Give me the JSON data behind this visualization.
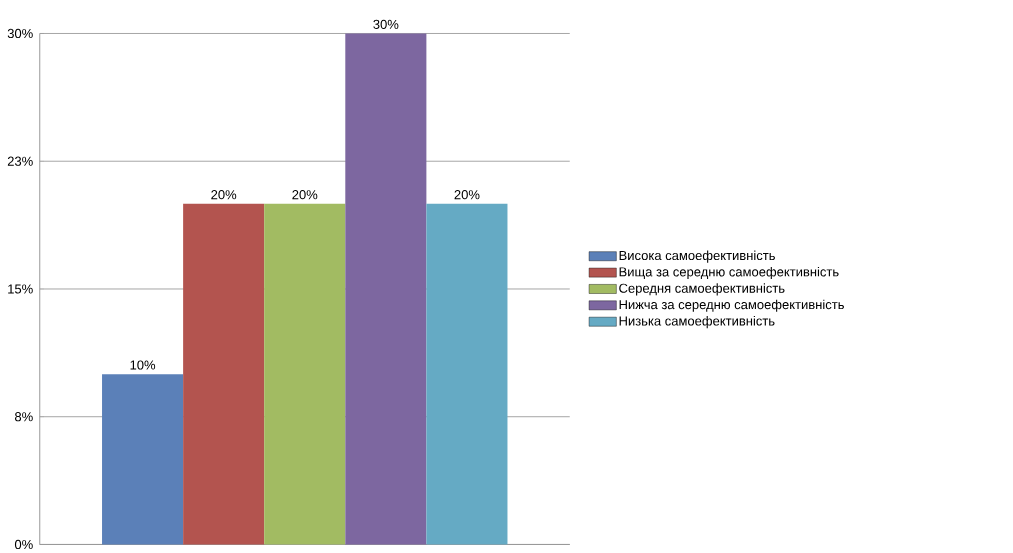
{
  "chart_data": {
    "type": "bar",
    "categories": [
      null
    ],
    "series": [
      {
        "name": "Висока самоефективність",
        "color": "#5b80b8",
        "values": [
          10
        ],
        "value_labels": [
          "10%"
        ]
      },
      {
        "name": "Вища за середню самоефективність",
        "color": "#b3544f",
        "values": [
          20
        ],
        "value_labels": [
          "20%"
        ]
      },
      {
        "name": "Середня самоефективність",
        "color": "#a2bb62",
        "values": [
          20
        ],
        "value_labels": [
          "20%"
        ]
      },
      {
        "name": "Нижча за середню самоефективність",
        "color": "#7d67a0",
        "values": [
          30
        ],
        "value_labels": [
          "30%"
        ]
      },
      {
        "name": "Низька самоефективність",
        "color": "#65aac4",
        "values": [
          20
        ],
        "value_labels": [
          "20%"
        ]
      }
    ],
    "ylim": [
      0,
      30
    ],
    "yticks": [
      {
        "value": 0,
        "label": "0%"
      },
      {
        "value": 7.5,
        "label": "8%"
      },
      {
        "value": 15,
        "label": "15%"
      },
      {
        "value": 22.5,
        "label": "23%"
      },
      {
        "value": 30,
        "label": "30%"
      }
    ],
    "grid": "y",
    "legend": "right"
  }
}
